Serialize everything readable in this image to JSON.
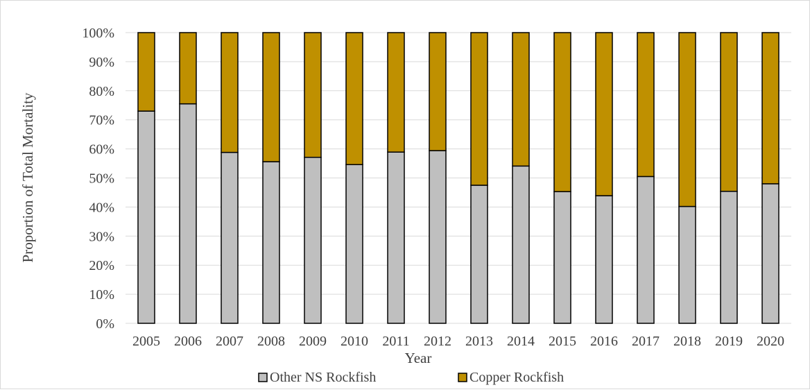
{
  "chart_data": {
    "type": "bar",
    "stacked": true,
    "normalized": true,
    "categories": [
      "2005",
      "2006",
      "2007",
      "2008",
      "2009",
      "2010",
      "2011",
      "2012",
      "2013",
      "2014",
      "2015",
      "2016",
      "2017",
      "2018",
      "2019",
      "2020"
    ],
    "series": [
      {
        "name": "Other NS Rockfish",
        "color": "#bfbfbf",
        "values": [
          73,
          75.5,
          58.8,
          55.6,
          57.1,
          54.6,
          58.9,
          59.4,
          47.5,
          54.1,
          45.3,
          43.9,
          50.5,
          40.2,
          45.4,
          48
        ]
      },
      {
        "name": "Copper Rockfish",
        "color": "#bf9000",
        "values": [
          27,
          24.5,
          41.2,
          44.4,
          42.9,
          45.4,
          41.1,
          40.6,
          52.5,
          45.9,
          54.7,
          56.1,
          49.5,
          59.8,
          54.6,
          52
        ]
      }
    ],
    "ylim": [
      0,
      100
    ],
    "y_ticks": [
      "0%",
      "10%",
      "20%",
      "30%",
      "40%",
      "50%",
      "60%",
      "70%",
      "80%",
      "90%",
      "100%"
    ],
    "xlabel": "Year",
    "ylabel": "Proportion of Total Mortality",
    "grid": true,
    "legend_position": "bottom"
  }
}
